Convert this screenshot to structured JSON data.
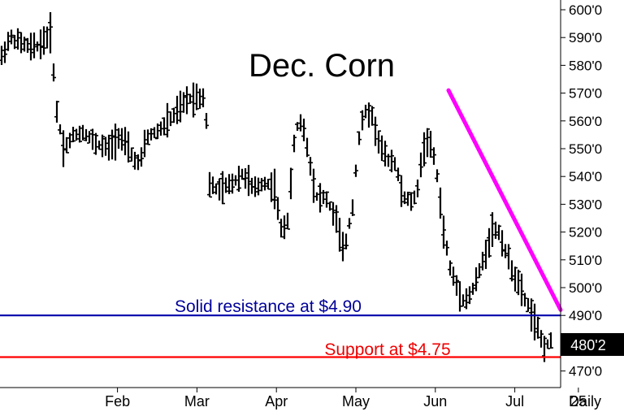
{
  "chart_data": {
    "type": "ohlc_bar",
    "title": "Dec. Corn",
    "period_label": "Daily",
    "price_axis": {
      "min": 465,
      "max": 605,
      "ticks": [
        {
          "value": 600,
          "label": "600'0"
        },
        {
          "value": 590,
          "label": "590'0"
        },
        {
          "value": 580,
          "label": "580'0"
        },
        {
          "value": 570,
          "label": "570'0"
        },
        {
          "value": 560,
          "label": "560'0"
        },
        {
          "value": 550,
          "label": "550'0"
        },
        {
          "value": 540,
          "label": "540'0"
        },
        {
          "value": 530,
          "label": "530'0"
        },
        {
          "value": 520,
          "label": "520'0"
        },
        {
          "value": 510,
          "label": "510'0"
        },
        {
          "value": 500,
          "label": "500'0"
        },
        {
          "value": 490,
          "label": "490'0"
        },
        {
          "value": 470,
          "label": "470'0"
        }
      ]
    },
    "time_axis_labels": [
      {
        "label": "Feb",
        "month_index": 1.0
      },
      {
        "label": "Mar",
        "month_index": 2.0
      },
      {
        "label": "Apr",
        "month_index": 3.0
      },
      {
        "label": "May",
        "month_index": 4.0
      },
      {
        "label": "Jun",
        "month_index": 5.0
      },
      {
        "label": "Jul",
        "month_index": 6.0
      },
      {
        "label": "25",
        "month_index": 6.8
      }
    ],
    "current_price": {
      "value": 480.25,
      "label": "480'2"
    },
    "series": [
      {
        "kind": "price_path",
        "points": [
          [
            0.0,
            583
          ],
          [
            0.12,
            590
          ],
          [
            0.28,
            588
          ],
          [
            0.45,
            586
          ],
          [
            0.58,
            588
          ],
          [
            0.72,
            592
          ],
          [
            0.78,
            566
          ],
          [
            0.9,
            550
          ],
          [
            1.05,
            555
          ],
          [
            1.2,
            556
          ],
          [
            1.35,
            552
          ],
          [
            1.55,
            550
          ],
          [
            1.7,
            555
          ],
          [
            1.9,
            547
          ],
          [
            2.0,
            544
          ],
          [
            2.1,
            554
          ],
          [
            2.3,
            557
          ],
          [
            2.5,
            562
          ],
          [
            2.7,
            568
          ],
          [
            2.95,
            569
          ],
          [
            3.0,
            537
          ],
          [
            3.15,
            535
          ],
          [
            3.3,
            537
          ],
          [
            3.5,
            541
          ],
          [
            3.65,
            535
          ],
          [
            3.8,
            538
          ],
          [
            3.95,
            536
          ],
          [
            4.05,
            520
          ],
          [
            4.15,
            525
          ],
          [
            4.25,
            557
          ],
          [
            4.35,
            560
          ],
          [
            4.45,
            547
          ],
          [
            4.55,
            533
          ],
          [
            4.7,
            532
          ],
          [
            4.85,
            524
          ],
          [
            4.95,
            512
          ],
          [
            5.1,
            532
          ],
          [
            5.15,
            551
          ],
          [
            5.25,
            563
          ],
          [
            5.35,
            563
          ],
          [
            5.45,
            553
          ],
          [
            5.55,
            547
          ],
          [
            5.7,
            545
          ],
          [
            5.8,
            533
          ],
          [
            5.9,
            531
          ],
          [
            6.0,
            532
          ],
          [
            6.05,
            542
          ],
          [
            6.15,
            554
          ],
          [
            6.25,
            548
          ],
          [
            6.3,
            541
          ],
          [
            6.4,
            520
          ],
          [
            6.5,
            506
          ],
          [
            6.6,
            500
          ],
          [
            6.7,
            495
          ],
          [
            6.8,
            498
          ],
          [
            6.95,
            508
          ],
          [
            7.1,
            521
          ],
          [
            7.2,
            520
          ],
          [
            7.35,
            509
          ],
          [
            7.45,
            503
          ],
          [
            7.55,
            497
          ],
          [
            7.65,
            492
          ],
          [
            7.75,
            485
          ],
          [
            7.85,
            479
          ],
          [
            7.95,
            480.25
          ]
        ]
      }
    ],
    "annotations": [
      {
        "type": "trendline",
        "color": "#ff00ff",
        "start": [
          6.2,
          571
        ],
        "end": [
          8.1,
          492
        ]
      },
      {
        "type": "horizontal_line",
        "value": 490,
        "color": "#0000aa",
        "label": "Solid resistance at $4.90"
      },
      {
        "type": "horizontal_line",
        "value": 475,
        "color": "#ff0000",
        "label": "Support at $4.75"
      }
    ],
    "grid": false
  }
}
